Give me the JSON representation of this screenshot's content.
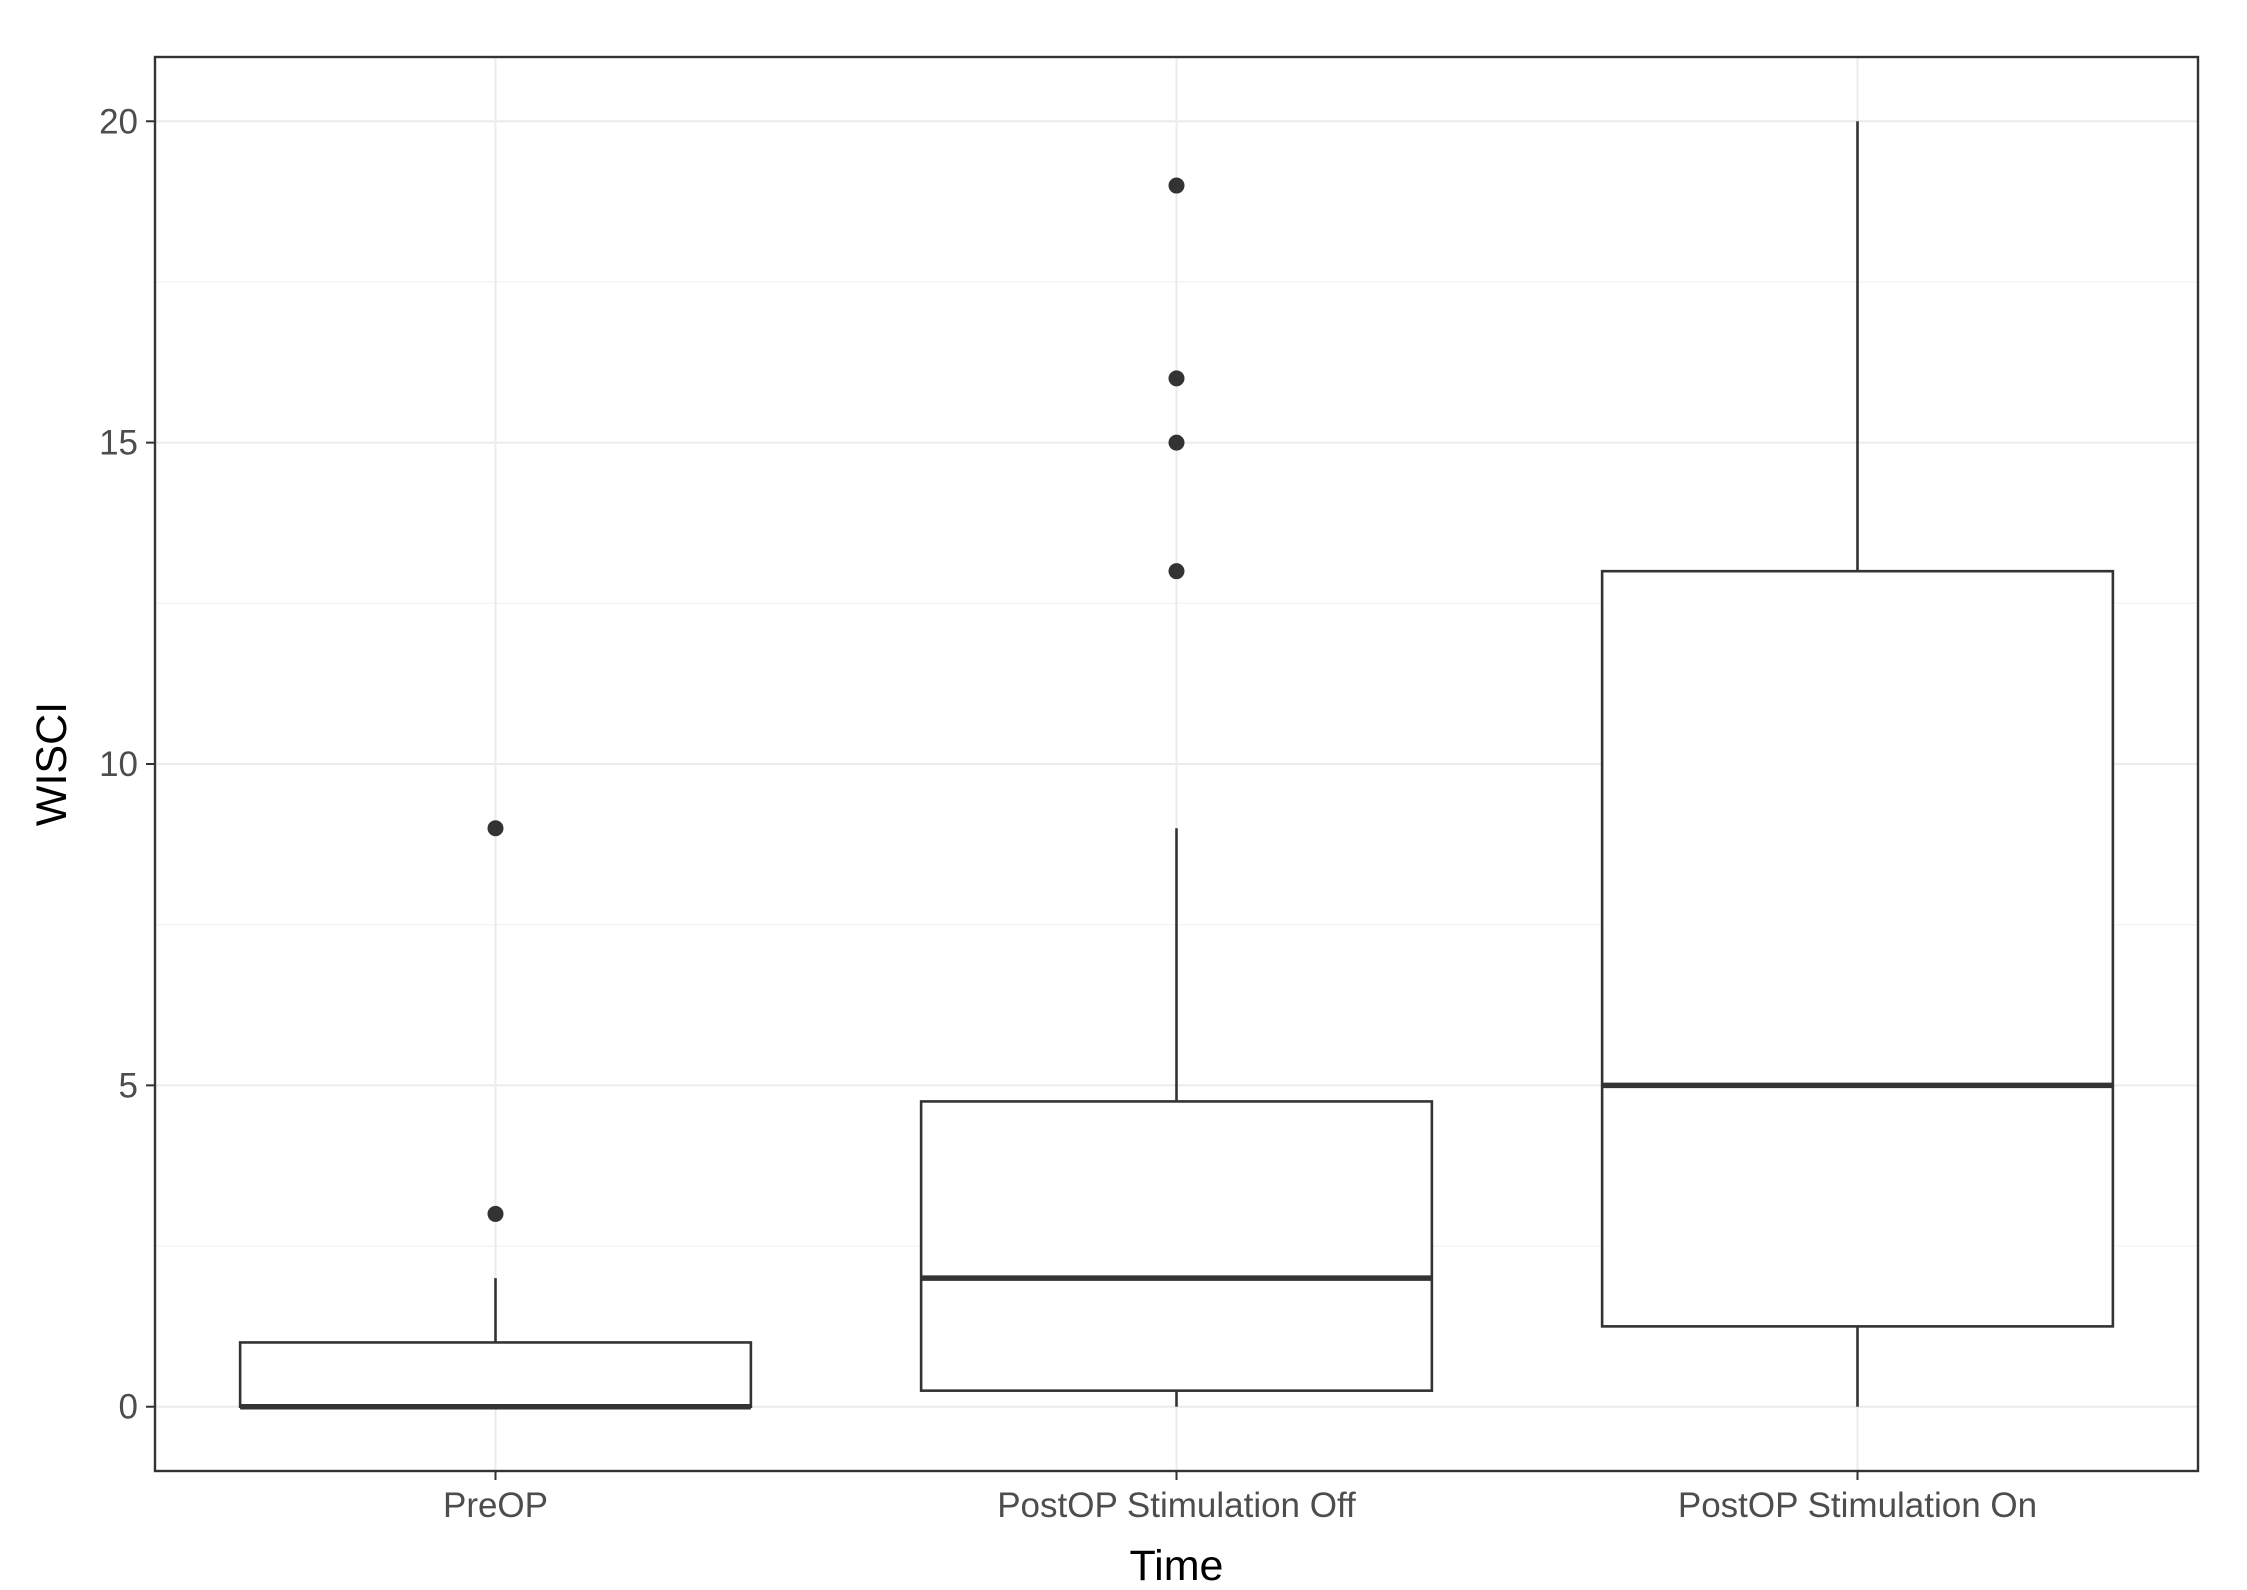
{
  "chart_data": {
    "type": "box",
    "xlabel": "Time",
    "ylabel": "WISCI",
    "ylim": [
      -1,
      21
    ],
    "yticks": [
      0,
      5,
      10,
      15,
      20
    ],
    "y_tick_labels": [
      "0",
      "5",
      "10",
      "15",
      "20"
    ],
    "grid": true,
    "categories": [
      "PreOP",
      "PostOP Stimulation Off",
      "PostOP Stimulation On"
    ],
    "boxes": [
      {
        "category": "PreOP",
        "whisker_low": 0,
        "q1": 0,
        "median": 0,
        "q3": 1,
        "whisker_high": 2,
        "outliers": [
          3,
          9
        ]
      },
      {
        "category": "PostOP Stimulation Off",
        "whisker_low": 0,
        "q1": 0.25,
        "median": 2,
        "q3": 4.75,
        "whisker_high": 9,
        "outliers": [
          13,
          15,
          16,
          19
        ]
      },
      {
        "category": "PostOP Stimulation On",
        "whisker_low": 0,
        "q1": 1.25,
        "median": 5,
        "q3": 13,
        "whisker_high": 20,
        "outliers": []
      }
    ]
  }
}
